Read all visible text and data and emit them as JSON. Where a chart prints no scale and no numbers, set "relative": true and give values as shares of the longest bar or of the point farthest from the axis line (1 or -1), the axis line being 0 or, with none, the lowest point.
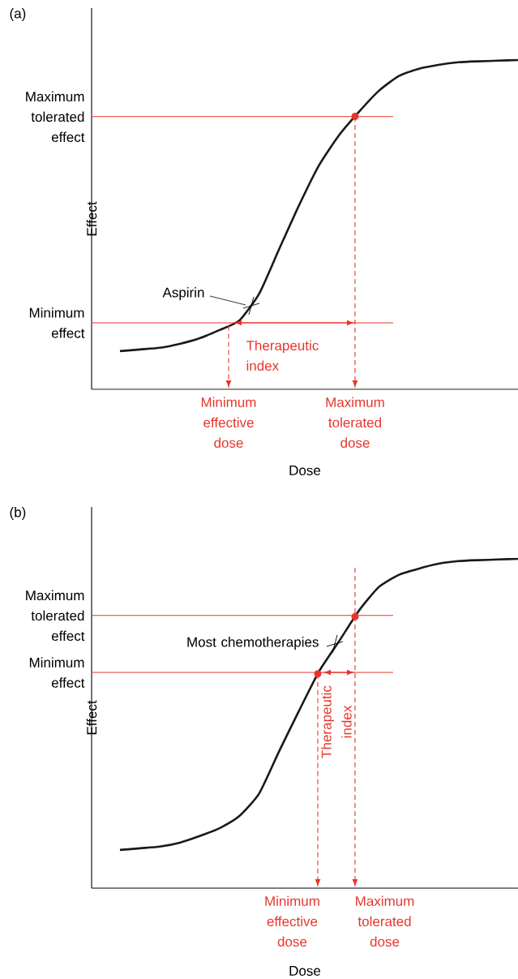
{
  "chart_data": [
    {
      "type": "line",
      "title": "(a)",
      "xlabel": "Dose",
      "ylabel": "Effect",
      "relative": true,
      "color": "#1a1a1a",
      "categories": [
        null,
        null,
        null,
        null,
        null,
        null,
        null,
        null,
        null,
        null,
        null,
        null,
        null,
        null,
        null,
        null,
        null,
        null,
        null,
        null,
        null
      ],
      "values": [
        0.116,
        0.121,
        0.126,
        0.138,
        0.155,
        0.18,
        0.209,
        0.291,
        0.426,
        0.559,
        0.68,
        0.771,
        0.842,
        0.906,
        0.951,
        0.973,
        0.985,
        0.993,
        0.996,
        0.998,
        1
      ],
      "ref_lines": [
        {
          "axis": "y",
          "value": 0.202,
          "label": "Minimum effect",
          "color": "#e8352b"
        },
        {
          "axis": "y",
          "value": 0.828,
          "label": "Maximum tolerated effect",
          "color": "#e8352b"
        }
      ],
      "annotations": [
        "Aspirin",
        "Therapeutic index",
        "Minimum effective dose",
        "Maximum tolerated dose"
      ]
    },
    {
      "type": "line",
      "title": "(b)",
      "xlabel": "Dose",
      "ylabel": "Effect",
      "relative": true,
      "color": "#1a1a1a",
      "categories": [
        null,
        null,
        null,
        null,
        null,
        null,
        null,
        null,
        null,
        null,
        null,
        null,
        null,
        null,
        null,
        null,
        null,
        null,
        null,
        null,
        null
      ],
      "values": [
        0.116,
        0.121,
        0.126,
        0.138,
        0.158,
        0.182,
        0.219,
        0.288,
        0.416,
        0.539,
        0.658,
        0.749,
        0.842,
        0.914,
        0.951,
        0.97,
        0.985,
        0.993,
        0.996,
        0.998,
        1
      ],
      "ref_lines": [
        {
          "axis": "y",
          "value": 0.655,
          "label": "Minimum effect",
          "color": "#e8352b"
        },
        {
          "axis": "y",
          "value": 0.828,
          "label": "Maximum tolerated effect",
          "color": "#e8352b"
        }
      ],
      "annotations": [
        "Most chemotherapies",
        "Therapeutic index",
        "Minimum effective dose",
        "Maximum tolerated dose"
      ]
    }
  ]
}
